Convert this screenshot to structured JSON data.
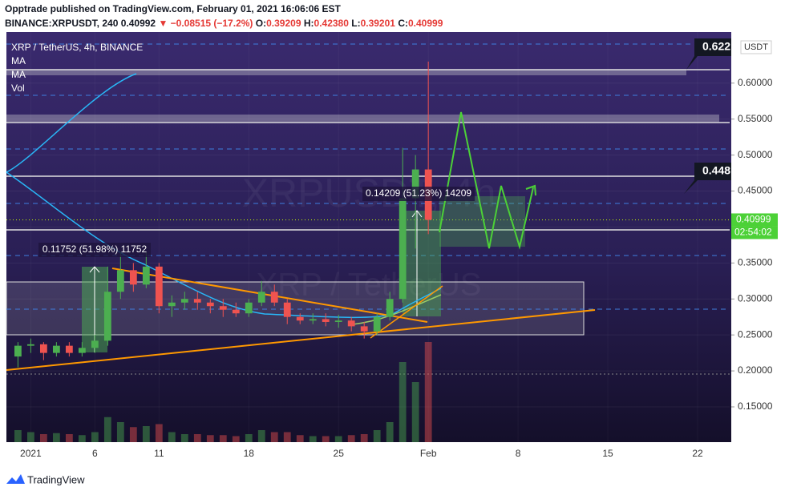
{
  "header": {
    "line1": "Opptrade published on TradingView.com, February 01, 2021 16:06:06 EST",
    "symbol": "BINANCE:XRPUSDT, 240",
    "last": "0.40992",
    "change": "▼ −0.08515 (−17.2%)",
    "ohlc": [
      {
        "key": "O:",
        "value": "0.39209"
      },
      {
        "key": "H:",
        "value": "0.42380"
      },
      {
        "key": "L:",
        "value": "0.39201"
      },
      {
        "key": "C:",
        "value": "0.40999"
      }
    ]
  },
  "chart_data": {
    "type": "candlestick",
    "title": "XRP / TetherUS, 4h, BINANCE",
    "indicators": [
      "MA",
      "MA",
      "Vol"
    ],
    "watermark": [
      "XRPUSDT, 4h",
      "XRP / TetherUS"
    ],
    "currency": "USDT",
    "x": [
      -1,
      0,
      1,
      2,
      3,
      4,
      5,
      6,
      7,
      8,
      9,
      10,
      11,
      12,
      13,
      14,
      15,
      16,
      17,
      18,
      19,
      20,
      21,
      22,
      23,
      24,
      25,
      26,
      27,
      28,
      29,
      30,
      31
    ],
    "open": [
      0.22,
      0.235,
      0.237,
      0.225,
      0.235,
      0.225,
      0.232,
      0.242,
      0.31,
      0.34,
      0.32,
      0.345,
      0.29,
      0.295,
      0.3,
      0.295,
      0.29,
      0.285,
      0.28,
      0.295,
      0.31,
      0.295,
      0.275,
      0.27,
      0.272,
      0.268,
      0.27,
      0.262,
      0.255,
      0.275,
      0.3,
      0.44,
      0.48
    ],
    "high": [
      0.24,
      0.245,
      0.24,
      0.24,
      0.24,
      0.24,
      0.25,
      0.345,
      0.365,
      0.35,
      0.365,
      0.35,
      0.305,
      0.31,
      0.31,
      0.3,
      0.3,
      0.295,
      0.3,
      0.325,
      0.32,
      0.3,
      0.28,
      0.28,
      0.28,
      0.278,
      0.275,
      0.268,
      0.28,
      0.31,
      0.51,
      0.5,
      0.63
    ],
    "low": [
      0.205,
      0.225,
      0.215,
      0.22,
      0.22,
      0.22,
      0.225,
      0.235,
      0.3,
      0.31,
      0.315,
      0.28,
      0.275,
      0.285,
      0.285,
      0.28,
      0.275,
      0.275,
      0.275,
      0.29,
      0.29,
      0.265,
      0.265,
      0.265,
      0.262,
      0.26,
      0.255,
      0.245,
      0.25,
      0.27,
      0.295,
      0.37,
      0.39
    ],
    "close": [
      0.235,
      0.237,
      0.225,
      0.235,
      0.225,
      0.232,
      0.242,
      0.31,
      0.34,
      0.32,
      0.345,
      0.29,
      0.295,
      0.3,
      0.295,
      0.29,
      0.285,
      0.28,
      0.295,
      0.31,
      0.295,
      0.275,
      0.27,
      0.272,
      0.268,
      0.27,
      0.262,
      0.255,
      0.275,
      0.3,
      0.44,
      0.48,
      0.41
    ],
    "volume": [
      1.2,
      1.0,
      0.8,
      0.9,
      0.8,
      0.7,
      1.0,
      2.5,
      2.0,
      1.5,
      1.6,
      1.8,
      1.0,
      0.8,
      0.8,
      0.7,
      0.7,
      0.6,
      0.8,
      1.2,
      1.0,
      1.0,
      0.7,
      0.6,
      0.6,
      0.6,
      0.7,
      0.8,
      1.2,
      2.0,
      8.0,
      6.0,
      10.0
    ],
    "up_color": "#4caf50",
    "down_color": "#ef5350",
    "xlim": [
      -1.9,
      54.5
    ],
    "xticks": [
      {
        "value": 0,
        "label": "2021"
      },
      {
        "value": 5,
        "label": "6"
      },
      {
        "value": 10,
        "label": "11"
      },
      {
        "value": 17,
        "label": "18"
      },
      {
        "value": 24,
        "label": "25"
      },
      {
        "value": 31,
        "label": "Feb"
      },
      {
        "value": 38,
        "label": "8"
      },
      {
        "value": 45,
        "label": "15"
      },
      {
        "value": 52,
        "label": "22"
      }
    ],
    "ylim": [
      0.101,
      0.671
    ],
    "yticks": [
      {
        "value": 0.15,
        "label": "0.15000"
      },
      {
        "value": 0.2,
        "label": "0.20000"
      },
      {
        "value": 0.25,
        "label": "0.25000"
      },
      {
        "value": 0.3,
        "label": "0.30000"
      },
      {
        "value": 0.35,
        "label": "0.35000"
      },
      {
        "value": 0.4,
        "label": "0.40000"
      },
      {
        "value": 0.45,
        "label": "0.45000"
      },
      {
        "value": 0.5,
        "label": "0.50000"
      },
      {
        "value": 0.55,
        "label": "0.55000"
      },
      {
        "value": 0.6,
        "label": "0.60000"
      }
    ],
    "grid": true,
    "last_price": 0.40999,
    "countdown": "02:54:02",
    "price_labels": [
      0.622,
      0.448
    ],
    "annotations": [
      "0.11752 (51.98%) 11752",
      "0.14209 (51.23%) 14209"
    ]
  },
  "footer": {
    "brand": "TradingView"
  }
}
